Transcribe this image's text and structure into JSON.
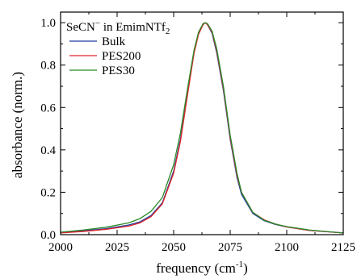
{
  "chart_data": {
    "type": "line",
    "annotation": {
      "prefix": "SeCN",
      "superscript": "−",
      "middle": " in EmimNTf",
      "subscript": "2"
    },
    "xlabel": {
      "main": "frequency (cm",
      "superscript": "-1",
      "close": ")"
    },
    "ylabel": "absorbance (norm.)",
    "xlim": [
      2000,
      2125
    ],
    "ylim": [
      0,
      1.05
    ],
    "xticks": [
      2000,
      2025,
      2050,
      2075,
      2100,
      2125
    ],
    "xtick_labels": [
      "2000",
      "2025",
      "2050",
      "2075",
      "2100",
      "2125"
    ],
    "yticks": [
      0,
      0.2,
      0.4,
      0.6,
      0.8,
      1.0
    ],
    "ytick_labels": [
      "0.0",
      "0.2",
      "0.4",
      "0.6",
      "0.8",
      "1.0"
    ],
    "legend_position": "top-left",
    "grid": false,
    "series": [
      {
        "name": "Bulk",
        "color": "#1f3fa0",
        "x": [
          2000,
          2010,
          2020,
          2030,
          2035,
          2040,
          2045,
          2050,
          2053,
          2056,
          2059,
          2061,
          2063,
          2064,
          2065,
          2067,
          2069,
          2072,
          2075,
          2078,
          2080,
          2085,
          2090,
          2095,
          2100,
          2110,
          2125
        ],
        "y": [
          0.01,
          0.018,
          0.028,
          0.045,
          0.06,
          0.09,
          0.15,
          0.3,
          0.45,
          0.66,
          0.86,
          0.95,
          0.995,
          1.0,
          0.99,
          0.95,
          0.86,
          0.68,
          0.45,
          0.27,
          0.19,
          0.1,
          0.066,
          0.048,
          0.036,
          0.02,
          0.008
        ]
      },
      {
        "name": "PES200",
        "color": "#e0252a",
        "x": [
          2000,
          2010,
          2020,
          2030,
          2035,
          2040,
          2045,
          2050,
          2053,
          2056,
          2059,
          2061,
          2063,
          2064,
          2065,
          2067,
          2069,
          2072,
          2075,
          2078,
          2080,
          2085,
          2090,
          2095,
          2100,
          2110,
          2125
        ],
        "y": [
          0.008,
          0.015,
          0.025,
          0.04,
          0.055,
          0.085,
          0.145,
          0.29,
          0.44,
          0.65,
          0.855,
          0.945,
          0.99,
          1.0,
          0.99,
          0.955,
          0.87,
          0.69,
          0.46,
          0.28,
          0.2,
          0.105,
          0.07,
          0.05,
          0.036,
          0.02,
          0.008
        ]
      },
      {
        "name": "PES30",
        "color": "#2a8a2a",
        "x": [
          2000,
          2010,
          2020,
          2030,
          2035,
          2040,
          2045,
          2050,
          2053,
          2056,
          2059,
          2061,
          2063,
          2064,
          2065,
          2067,
          2069,
          2072,
          2075,
          2078,
          2080,
          2085,
          2090,
          2095,
          2100,
          2110,
          2125
        ],
        "y": [
          0.012,
          0.022,
          0.035,
          0.055,
          0.075,
          0.11,
          0.175,
          0.33,
          0.48,
          0.68,
          0.87,
          0.955,
          0.995,
          1.0,
          0.995,
          0.96,
          0.88,
          0.7,
          0.47,
          0.29,
          0.2,
          0.105,
          0.068,
          0.05,
          0.038,
          0.022,
          0.008
        ]
      }
    ]
  }
}
